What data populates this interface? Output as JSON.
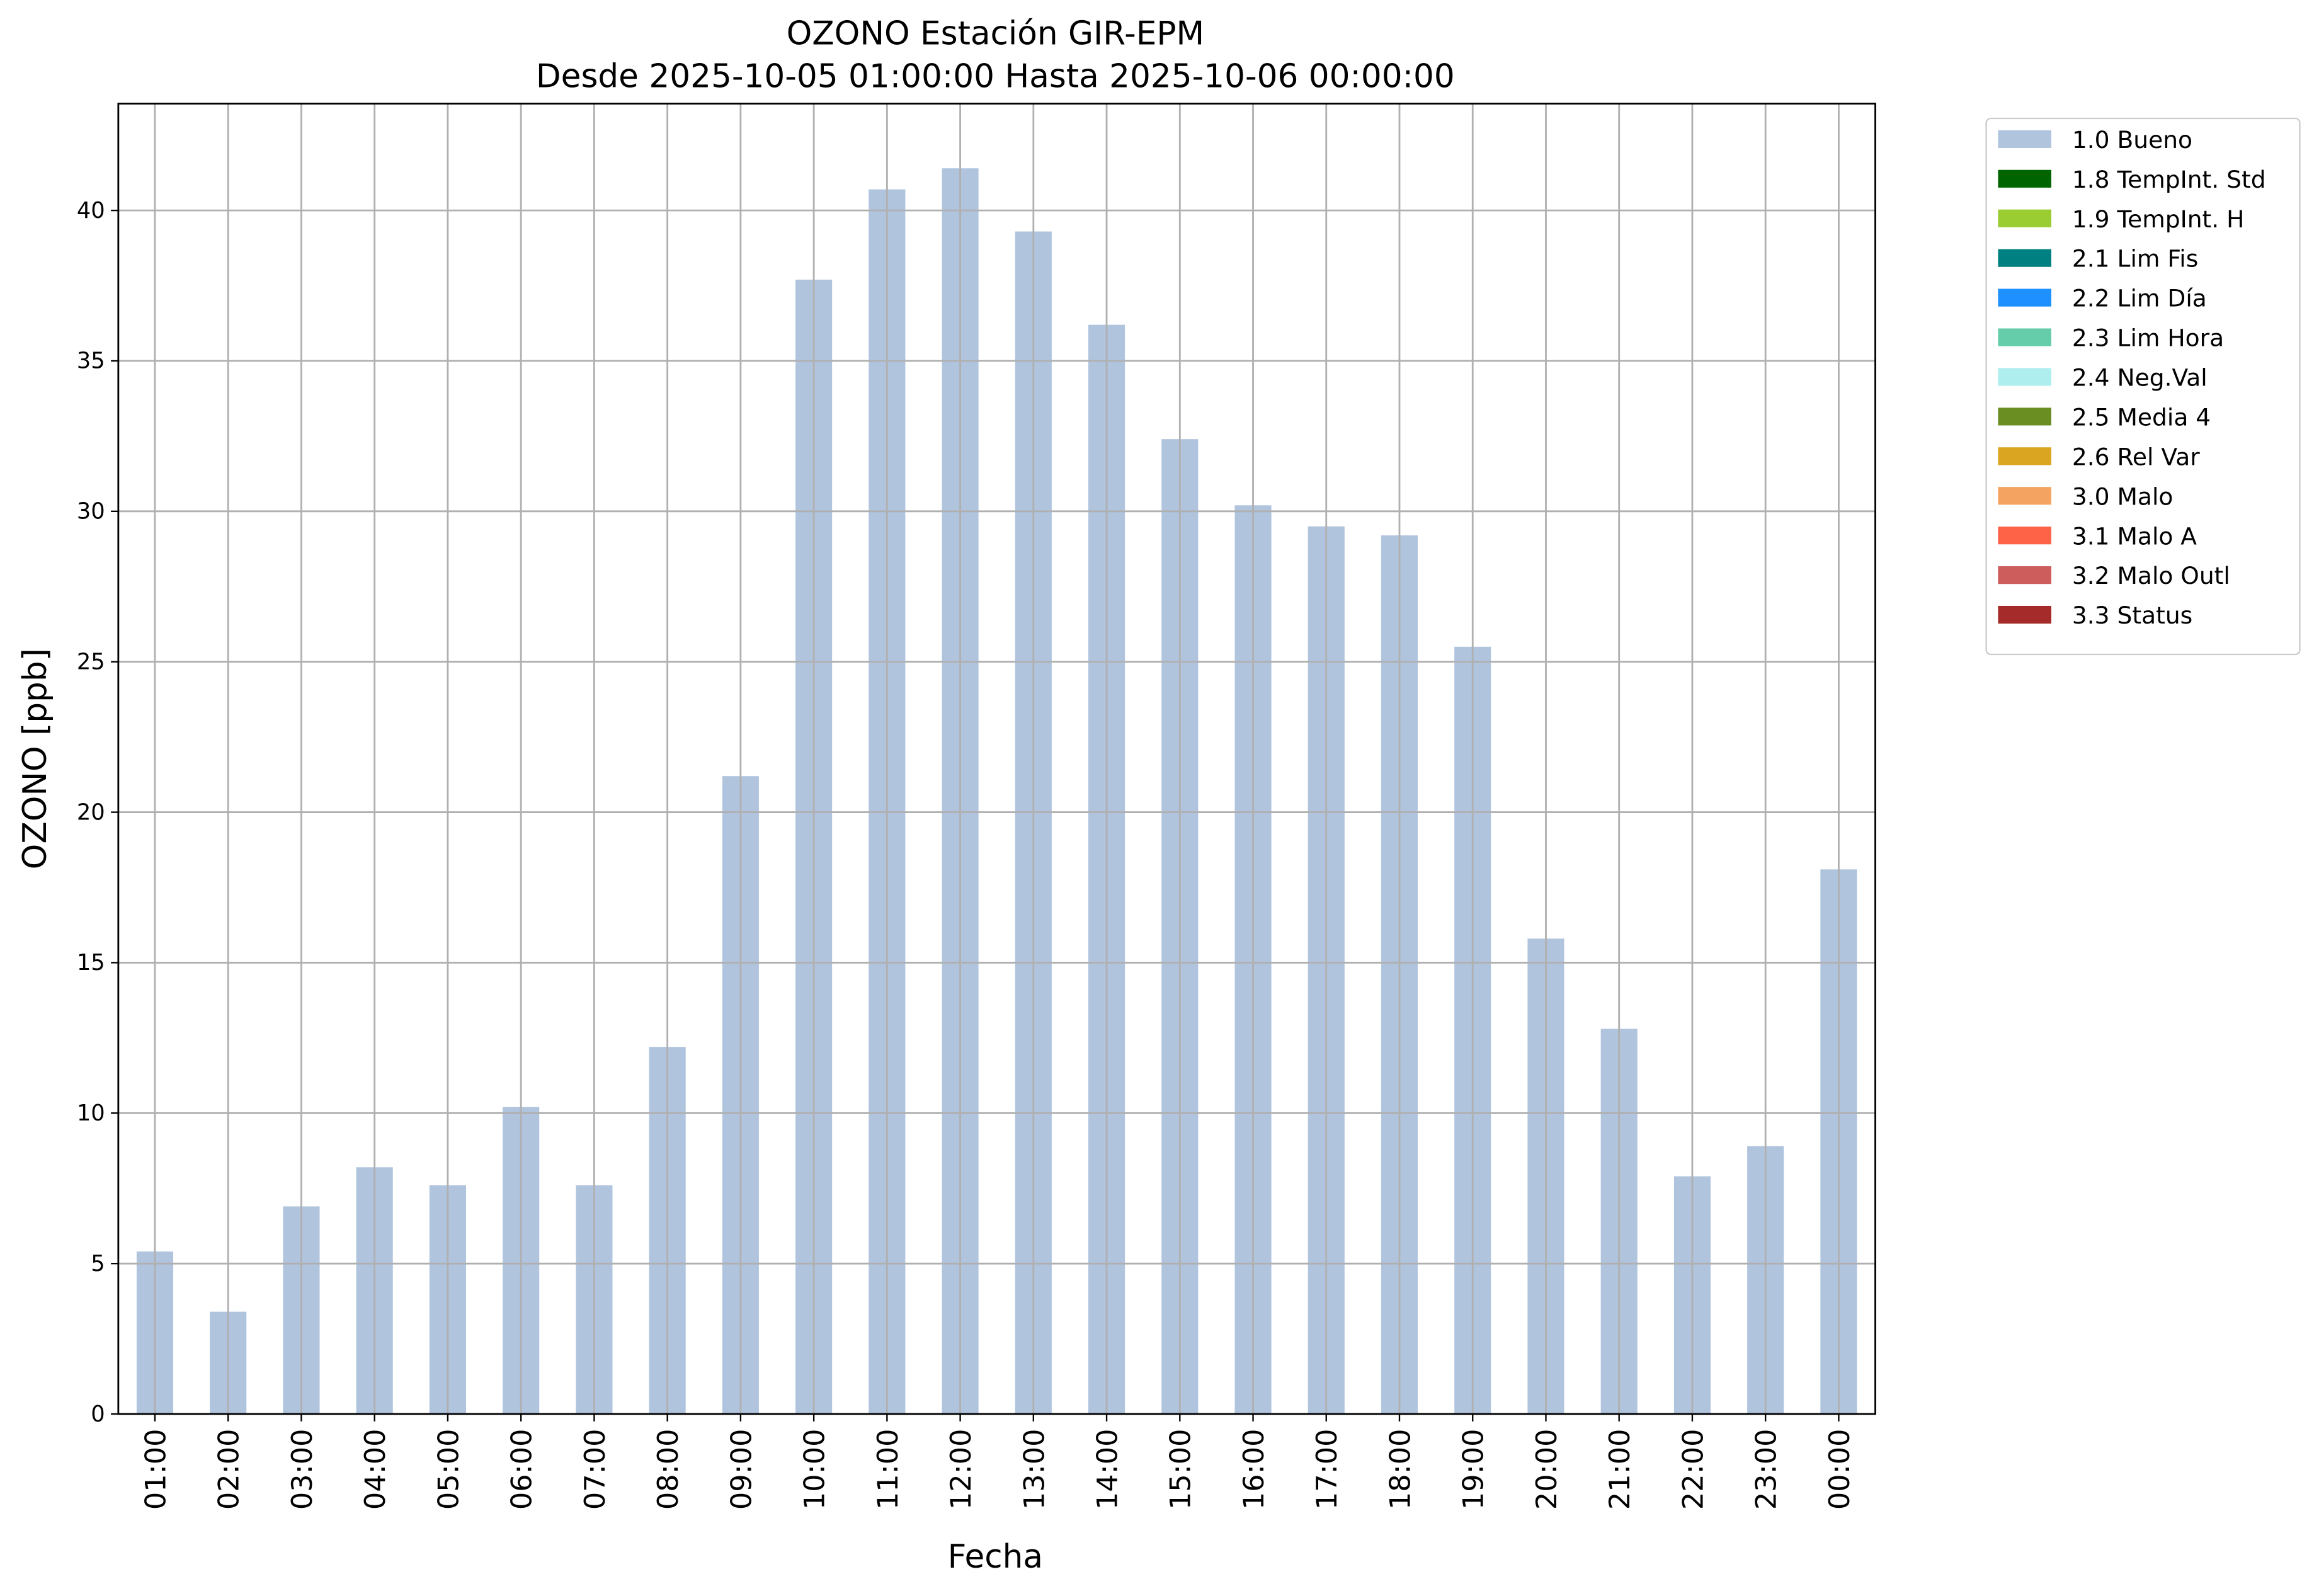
{
  "chart_data": {
    "type": "bar",
    "title": "OZONO Estación GIR-EPM",
    "subtitle": "Desde 2025-10-05 01:00:00 Hasta 2025-10-06 00:00:00",
    "x_label": "Fecha",
    "y_label": "OZONO [ppb]",
    "categories": [
      "01:00",
      "02:00",
      "03:00",
      "04:00",
      "05:00",
      "06:00",
      "07:00",
      "08:00",
      "09:00",
      "10:00",
      "11:00",
      "12:00",
      "13:00",
      "14:00",
      "15:00",
      "16:00",
      "17:00",
      "18:00",
      "19:00",
      "20:00",
      "21:00",
      "22:00",
      "23:00",
      "00:00"
    ],
    "series": [
      {
        "name": "1.0 Bueno",
        "color": "#b0c4de",
        "values": [
          5.4,
          3.4,
          6.9,
          8.2,
          7.6,
          10.2,
          7.6,
          12.2,
          21.2,
          37.7,
          40.7,
          41.4,
          39.3,
          36.2,
          32.4,
          30.2,
          29.5,
          29.2,
          25.5,
          15.8,
          12.8,
          7.9,
          8.9,
          18.1
        ]
      }
    ],
    "other_legend_entries": [
      {
        "name": "1.8 TempInt. Std",
        "color": "#006400"
      },
      {
        "name": "1.9 TempInt. H",
        "color": "#9acd32"
      },
      {
        "name": "2.1 Lim Fis",
        "color": "#008080"
      },
      {
        "name": "2.2 Lim Día",
        "color": "#1e90ff"
      },
      {
        "name": "2.3 Lim Hora",
        "color": "#66cdaa"
      },
      {
        "name": "2.4 Neg.Val",
        "color": "#afeeee"
      },
      {
        "name": "2.5 Media 4",
        "color": "#6b8e23"
      },
      {
        "name": "2.6 Rel Var",
        "color": "#daa520"
      },
      {
        "name": "3.0 Malo",
        "color": "#f4a460"
      },
      {
        "name": "3.1 Malo A",
        "color": "#ff6347"
      },
      {
        "name": "3.2 Malo Outl",
        "color": "#cd5c5c"
      },
      {
        "name": "3.3 Status",
        "color": "#a52a2a"
      }
    ],
    "ylim": [
      0,
      43.55
    ],
    "yticks": [
      0,
      5,
      10,
      15,
      20,
      25,
      30,
      35,
      40
    ],
    "grid": true,
    "legend_position": "outside-upper-right"
  }
}
